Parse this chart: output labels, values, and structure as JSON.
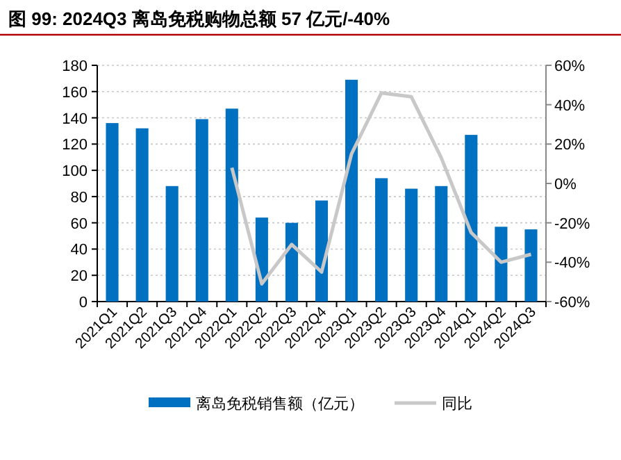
{
  "chart_data": {
    "type": "bar",
    "title": "图 99:  2024Q3 离岛免税购物总额 57 亿元/-40%",
    "categories": [
      "2021Q1",
      "2021Q2",
      "2021Q3",
      "2021Q4",
      "2022Q1",
      "2022Q2",
      "2022Q3",
      "2022Q4",
      "2023Q1",
      "2023Q2",
      "2023Q3",
      "2023Q4",
      "2024Q1",
      "2024Q2",
      "2024Q3"
    ],
    "series": [
      {
        "name": "离岛免税销售额（亿元）",
        "color": "#0070c0",
        "values": [
          136,
          132,
          88,
          139,
          147,
          64,
          60,
          77,
          169,
          94,
          86,
          88,
          127,
          57,
          55
        ]
      },
      {
        "name": "同比",
        "type": "line",
        "axis": "y2",
        "color": "#c8c8c8",
        "values": [
          null,
          null,
          null,
          null,
          8,
          -51,
          -31,
          -45,
          15,
          46,
          44,
          13,
          -25,
          -40,
          -36
        ]
      }
    ],
    "ylim": [
      0,
      180
    ],
    "yticks": [
      0,
      20,
      40,
      60,
      80,
      100,
      120,
      140,
      160,
      180
    ],
    "y2lim": [
      -60,
      60
    ],
    "y2ticks": [
      {
        "value": -60,
        "label": "-60%"
      },
      {
        "value": -40,
        "label": "-40%"
      },
      {
        "value": -20,
        "label": "-20%"
      },
      {
        "value": 0,
        "label": "0%"
      },
      {
        "value": 20,
        "label": "20%"
      },
      {
        "value": 40,
        "label": "40%"
      },
      {
        "value": 60,
        "label": "60%"
      }
    ],
    "grid": "y",
    "legend": "bottom",
    "marker": "none"
  }
}
